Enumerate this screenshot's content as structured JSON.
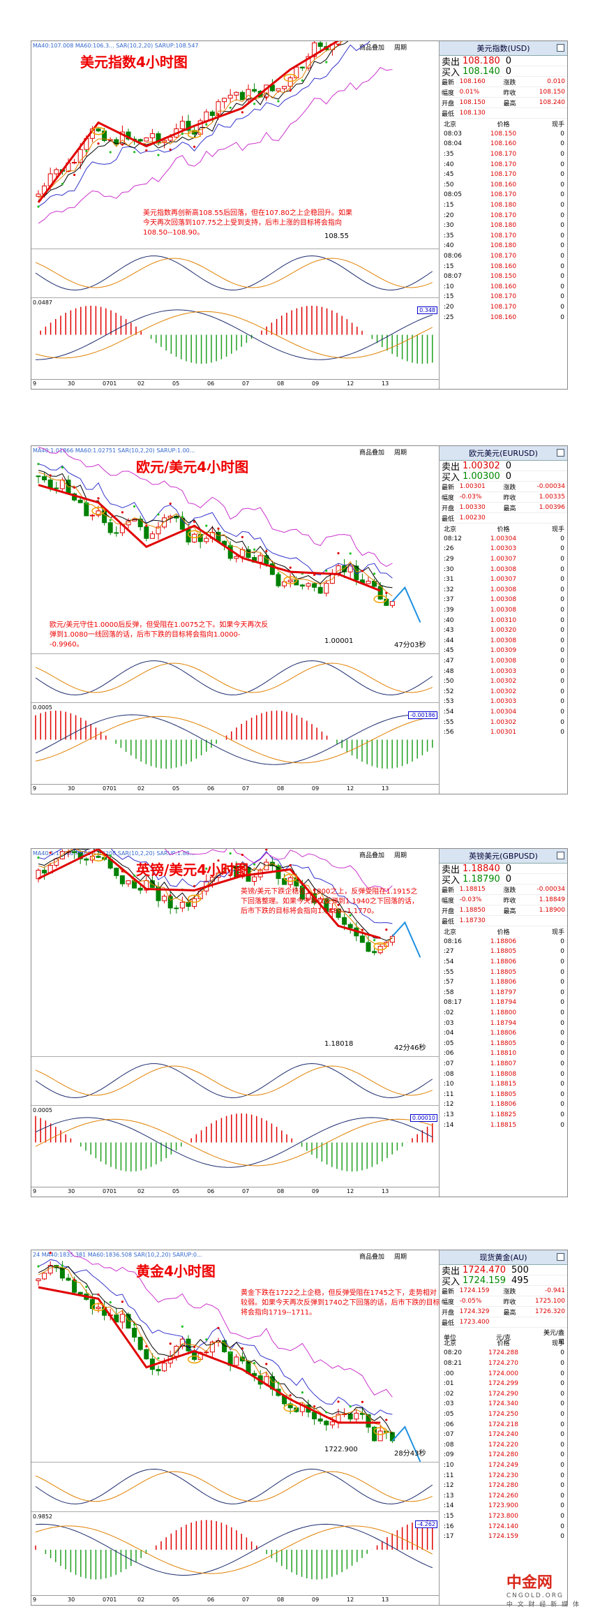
{
  "panels": [
    {
      "title": "美元指数4小时图",
      "indicator": "MA40:107.008  MA60:106.3...  SAR(10,2,20)  SARUP:108.547",
      "toolbar": [
        "商品叠加",
        "周期"
      ],
      "annotation": "美元指数再创新高108.55后回落，但在107.80之上企稳回升。如果今天再次回落到107.75之上受到支持，后市上涨的目标将会指向108.50--108.90。",
      "low_label": "108.55",
      "macd_value": "0.348",
      "sub_value": "0.0487",
      "x_labels": [
        "9",
        "30",
        "0701",
        "02",
        "05",
        "06",
        "07",
        "08",
        "09",
        "12",
        "13"
      ],
      "side": {
        "name": "美元指数(USD)",
        "sell_label": "卖出",
        "sell": "108.180",
        "sell_vol": "0",
        "buy_label": "买入",
        "buy": "108.140",
        "buy_vol": "0",
        "stats": [
          [
            "最新",
            "108.160",
            "涨跌",
            "0.010"
          ],
          [
            "幅度",
            "0.01%",
            "昨收",
            "108.150"
          ],
          [
            "开盘",
            "108.150",
            "最高",
            "108.240"
          ],
          [
            "最低",
            "108.130",
            "",
            ""
          ]
        ],
        "col_head": [
          "北京",
          "价格",
          "现手"
        ],
        "ticks": [
          [
            "08:03",
            "108.150",
            "0"
          ],
          [
            "08:04",
            "108.160",
            "0"
          ],
          [
            ":35",
            "108.170",
            "0"
          ],
          [
            ":40",
            "108.170",
            "0"
          ],
          [
            ":45",
            "108.170",
            "0"
          ],
          [
            ":50",
            "108.160",
            "0"
          ],
          [
            "08:05",
            "108.170",
            "0"
          ],
          [
            ":15",
            "108.180",
            "0"
          ],
          [
            ":20",
            "108.170",
            "0"
          ],
          [
            ":30",
            "108.180",
            "0"
          ],
          [
            ":35",
            "108.170",
            "0"
          ],
          [
            ":40",
            "108.180",
            "0"
          ],
          [
            "08:06",
            "108.170",
            "0"
          ],
          [
            ":15",
            "108.160",
            "0"
          ],
          [
            "08:07",
            "108.150",
            "0"
          ],
          [
            ":10",
            "108.160",
            "0"
          ],
          [
            ":15",
            "108.170",
            "0"
          ],
          [
            ":20",
            "108.170",
            "0"
          ],
          [
            ":25",
            "108.160",
            "0"
          ]
        ]
      }
    },
    {
      "title": "欧元/美元4小时图",
      "indicator": "MA40:1.01866  MA60:1.02751  SAR(10,2,20)  SARUP:1.00...",
      "toolbar": [
        "商品叠加",
        "周期"
      ],
      "annotation": "欧元/美元守住1.0000后反弹，但受阻在1.0075之下。如果今天再次反弹到1.0080一线回落的话，后市下跌的目标将会指向1.0000--0.9960。",
      "low_label": "1.00001",
      "count_label": "47分03秒",
      "macd_value": "-0.00186",
      "sub_value": "0.0005",
      "x_labels": [
        "9",
        "30",
        "0701",
        "02",
        "05",
        "06",
        "07",
        "08",
        "09",
        "12",
        "13"
      ],
      "side": {
        "name": "欧元美元(EURUSD)",
        "sell_label": "卖出",
        "sell": "1.00302",
        "sell_vol": "0",
        "buy_label": "买入",
        "buy": "1.00300",
        "buy_vol": "0",
        "stats": [
          [
            "最新",
            "1.00301",
            "涨跌",
            "-0.00034"
          ],
          [
            "幅度",
            "-0.03%",
            "昨收",
            "1.00335"
          ],
          [
            "开盘",
            "1.00330",
            "最高",
            "1.00396"
          ],
          [
            "最低",
            "1.00230",
            "",
            ""
          ]
        ],
        "col_head": [
          "北京",
          "价格",
          "现手"
        ],
        "ticks": [
          [
            "08:12",
            "1.00304",
            "0"
          ],
          [
            ":26",
            "1.00303",
            "0"
          ],
          [
            ":29",
            "1.00307",
            "0"
          ],
          [
            ":30",
            "1.00308",
            "0"
          ],
          [
            ":31",
            "1.00307",
            "0"
          ],
          [
            ":32",
            "1.00308",
            "0"
          ],
          [
            ":37",
            "1.00308",
            "0"
          ],
          [
            ":39",
            "1.00308",
            "0"
          ],
          [
            ":40",
            "1.00310",
            "0"
          ],
          [
            ":43",
            "1.00320",
            "0"
          ],
          [
            ":44",
            "1.00308",
            "0"
          ],
          [
            ":45",
            "1.00309",
            "0"
          ],
          [
            ":47",
            "1.00308",
            "0"
          ],
          [
            ":48",
            "1.00303",
            "0"
          ],
          [
            ":50",
            "1.00302",
            "0"
          ],
          [
            ":52",
            "1.00302",
            "0"
          ],
          [
            ":53",
            "1.00303",
            "0"
          ],
          [
            ":54",
            "1.00304",
            "0"
          ],
          [
            ":55",
            "1.00302",
            "0"
          ],
          [
            ":56",
            "1.00301",
            "0"
          ]
        ]
      }
    },
    {
      "title": "英镑/美元4小时图",
      "indicator": "MA40:1.19686  MA60:1.20208  SAR(10,2,20)  SARUP:1.88...",
      "toolbar": [
        "商品叠加",
        "周期"
      ],
      "annotation": "英镑/美元下跌企稳在1.1800之上，反弹受阻在1.1915之下回落整理。如果今天再次反弹到1.1940之下回落的话，后市下跌的目标将会指向1.1830--1.1770。",
      "low_label": "1.18018",
      "count_label": "42分46秒",
      "macd_value": "0.00010",
      "sub_value": "0.0005",
      "x_labels": [
        "9",
        "30",
        "0701",
        "02",
        "05",
        "06",
        "07",
        "08",
        "09",
        "12",
        "13"
      ],
      "side": {
        "name": "英镑美元(GBPUSD)",
        "sell_label": "卖出",
        "sell": "1.18840",
        "sell_vol": "0",
        "buy_label": "买入",
        "buy": "1.18790",
        "buy_vol": "0",
        "stats": [
          [
            "最新",
            "1.18815",
            "涨跌",
            "-0.00034"
          ],
          [
            "幅度",
            "-0.03%",
            "昨收",
            "1.18849"
          ],
          [
            "开盘",
            "1.18850",
            "最高",
            "1.18900"
          ],
          [
            "最低",
            "1.18730",
            "",
            ""
          ]
        ],
        "col_head": [
          "北京",
          "价格",
          "现手"
        ],
        "ticks": [
          [
            "08:16",
            "1.18806",
            "0"
          ],
          [
            ":27",
            "1.18805",
            "0"
          ],
          [
            ":54",
            "1.18806",
            "0"
          ],
          [
            ":55",
            "1.18805",
            "0"
          ],
          [
            ":57",
            "1.18806",
            "0"
          ],
          [
            ":58",
            "1.18797",
            "0"
          ],
          [
            "08:17",
            "1.18794",
            "0"
          ],
          [
            ":02",
            "1.18800",
            "0"
          ],
          [
            ":03",
            "1.18794",
            "0"
          ],
          [
            ":04",
            "1.18806",
            "0"
          ],
          [
            ":05",
            "1.18805",
            "0"
          ],
          [
            ":06",
            "1.18810",
            "0"
          ],
          [
            ":07",
            "1.18807",
            "0"
          ],
          [
            ":08",
            "1.18808",
            "0"
          ],
          [
            ":10",
            "1.18815",
            "0"
          ],
          [
            ":11",
            "1.18805",
            "0"
          ],
          [
            ":12",
            "1.18806",
            "0"
          ],
          [
            ":13",
            "1.18825",
            "0"
          ],
          [
            ":14",
            "1.18815",
            "0"
          ]
        ]
      }
    },
    {
      "title": "黄金4小时图",
      "indicator": "24  MA40:1835.381  MA60:1836.508  SAR(10,2,20)  SARUP:0...",
      "toolbar": [
        "商品叠加",
        "周期"
      ],
      "annotation": "黄金下跌在1722之上企稳，但反弹受阻在1745之下，走势相对较弱。如果今天再次反弹到1740之下回落的话，后市下跌的目标将会指向1719--1711。",
      "low_label": "1722.900",
      "count_label": "28分43秒",
      "macd_value": "-4.262",
      "sub_value": "0.9852",
      "x_labels": [
        "9",
        "30",
        "0701",
        "02",
        "05",
        "06",
        "07",
        "08",
        "09",
        "12",
        "13"
      ],
      "side": {
        "name": "现货黄金(AU)",
        "sell_label": "卖出",
        "sell": "1724.470",
        "sell_vol": "500",
        "buy_label": "买入",
        "buy": "1724.159",
        "buy_vol": "495",
        "stats": [
          [
            "最新",
            "1724.159",
            "涨跌",
            "-0.941"
          ],
          [
            "幅度",
            "-0.05%",
            "昨收",
            "1725.100"
          ],
          [
            "开盘",
            "1724.329",
            "最高",
            "1726.320"
          ],
          [
            "最低",
            "1723.400",
            "",
            ""
          ]
        ],
        "col_head": [
          "单位",
          "元/克",
          "美元/盎司"
        ],
        "ticks_head": [
          "北京",
          "价格",
          "现手"
        ],
        "ticks": [
          [
            "08:20",
            "1724.288",
            "0"
          ],
          [
            "08:21",
            "1724.270",
            "0"
          ],
          [
            ":00",
            "1724.000",
            "0"
          ],
          [
            ":01",
            "1724.299",
            "0"
          ],
          [
            ":02",
            "1724.290",
            "0"
          ],
          [
            ":03",
            "1724.340",
            "0"
          ],
          [
            ":05",
            "1724.250",
            "0"
          ],
          [
            ":06",
            "1724.218",
            "0"
          ],
          [
            ":07",
            "1724.240",
            "0"
          ],
          [
            ":08",
            "1724.220",
            "0"
          ],
          [
            ":09",
            "1724.280",
            "0"
          ],
          [
            ":10",
            "1724.249",
            "0"
          ],
          [
            ":11",
            "1724.230",
            "0"
          ],
          [
            ":12",
            "1724.280",
            "0"
          ],
          [
            ":13",
            "1724.260",
            "0"
          ],
          [
            ":14",
            "1723.900",
            "0"
          ],
          [
            ":15",
            "1723.800",
            "0"
          ],
          [
            ":16",
            "1724.140",
            "0"
          ],
          [
            ":17",
            "1724.159",
            "0"
          ]
        ]
      }
    }
  ],
  "watermark": {
    "brand": "中金网",
    "site": "CNGOLD.ORG",
    "slogan": "中 文 财 经 新 媒 体"
  },
  "colors": {
    "up": "#e00000",
    "down": "#008000",
    "arrow": "#1e8fe0",
    "highlight": "#f0a000"
  }
}
